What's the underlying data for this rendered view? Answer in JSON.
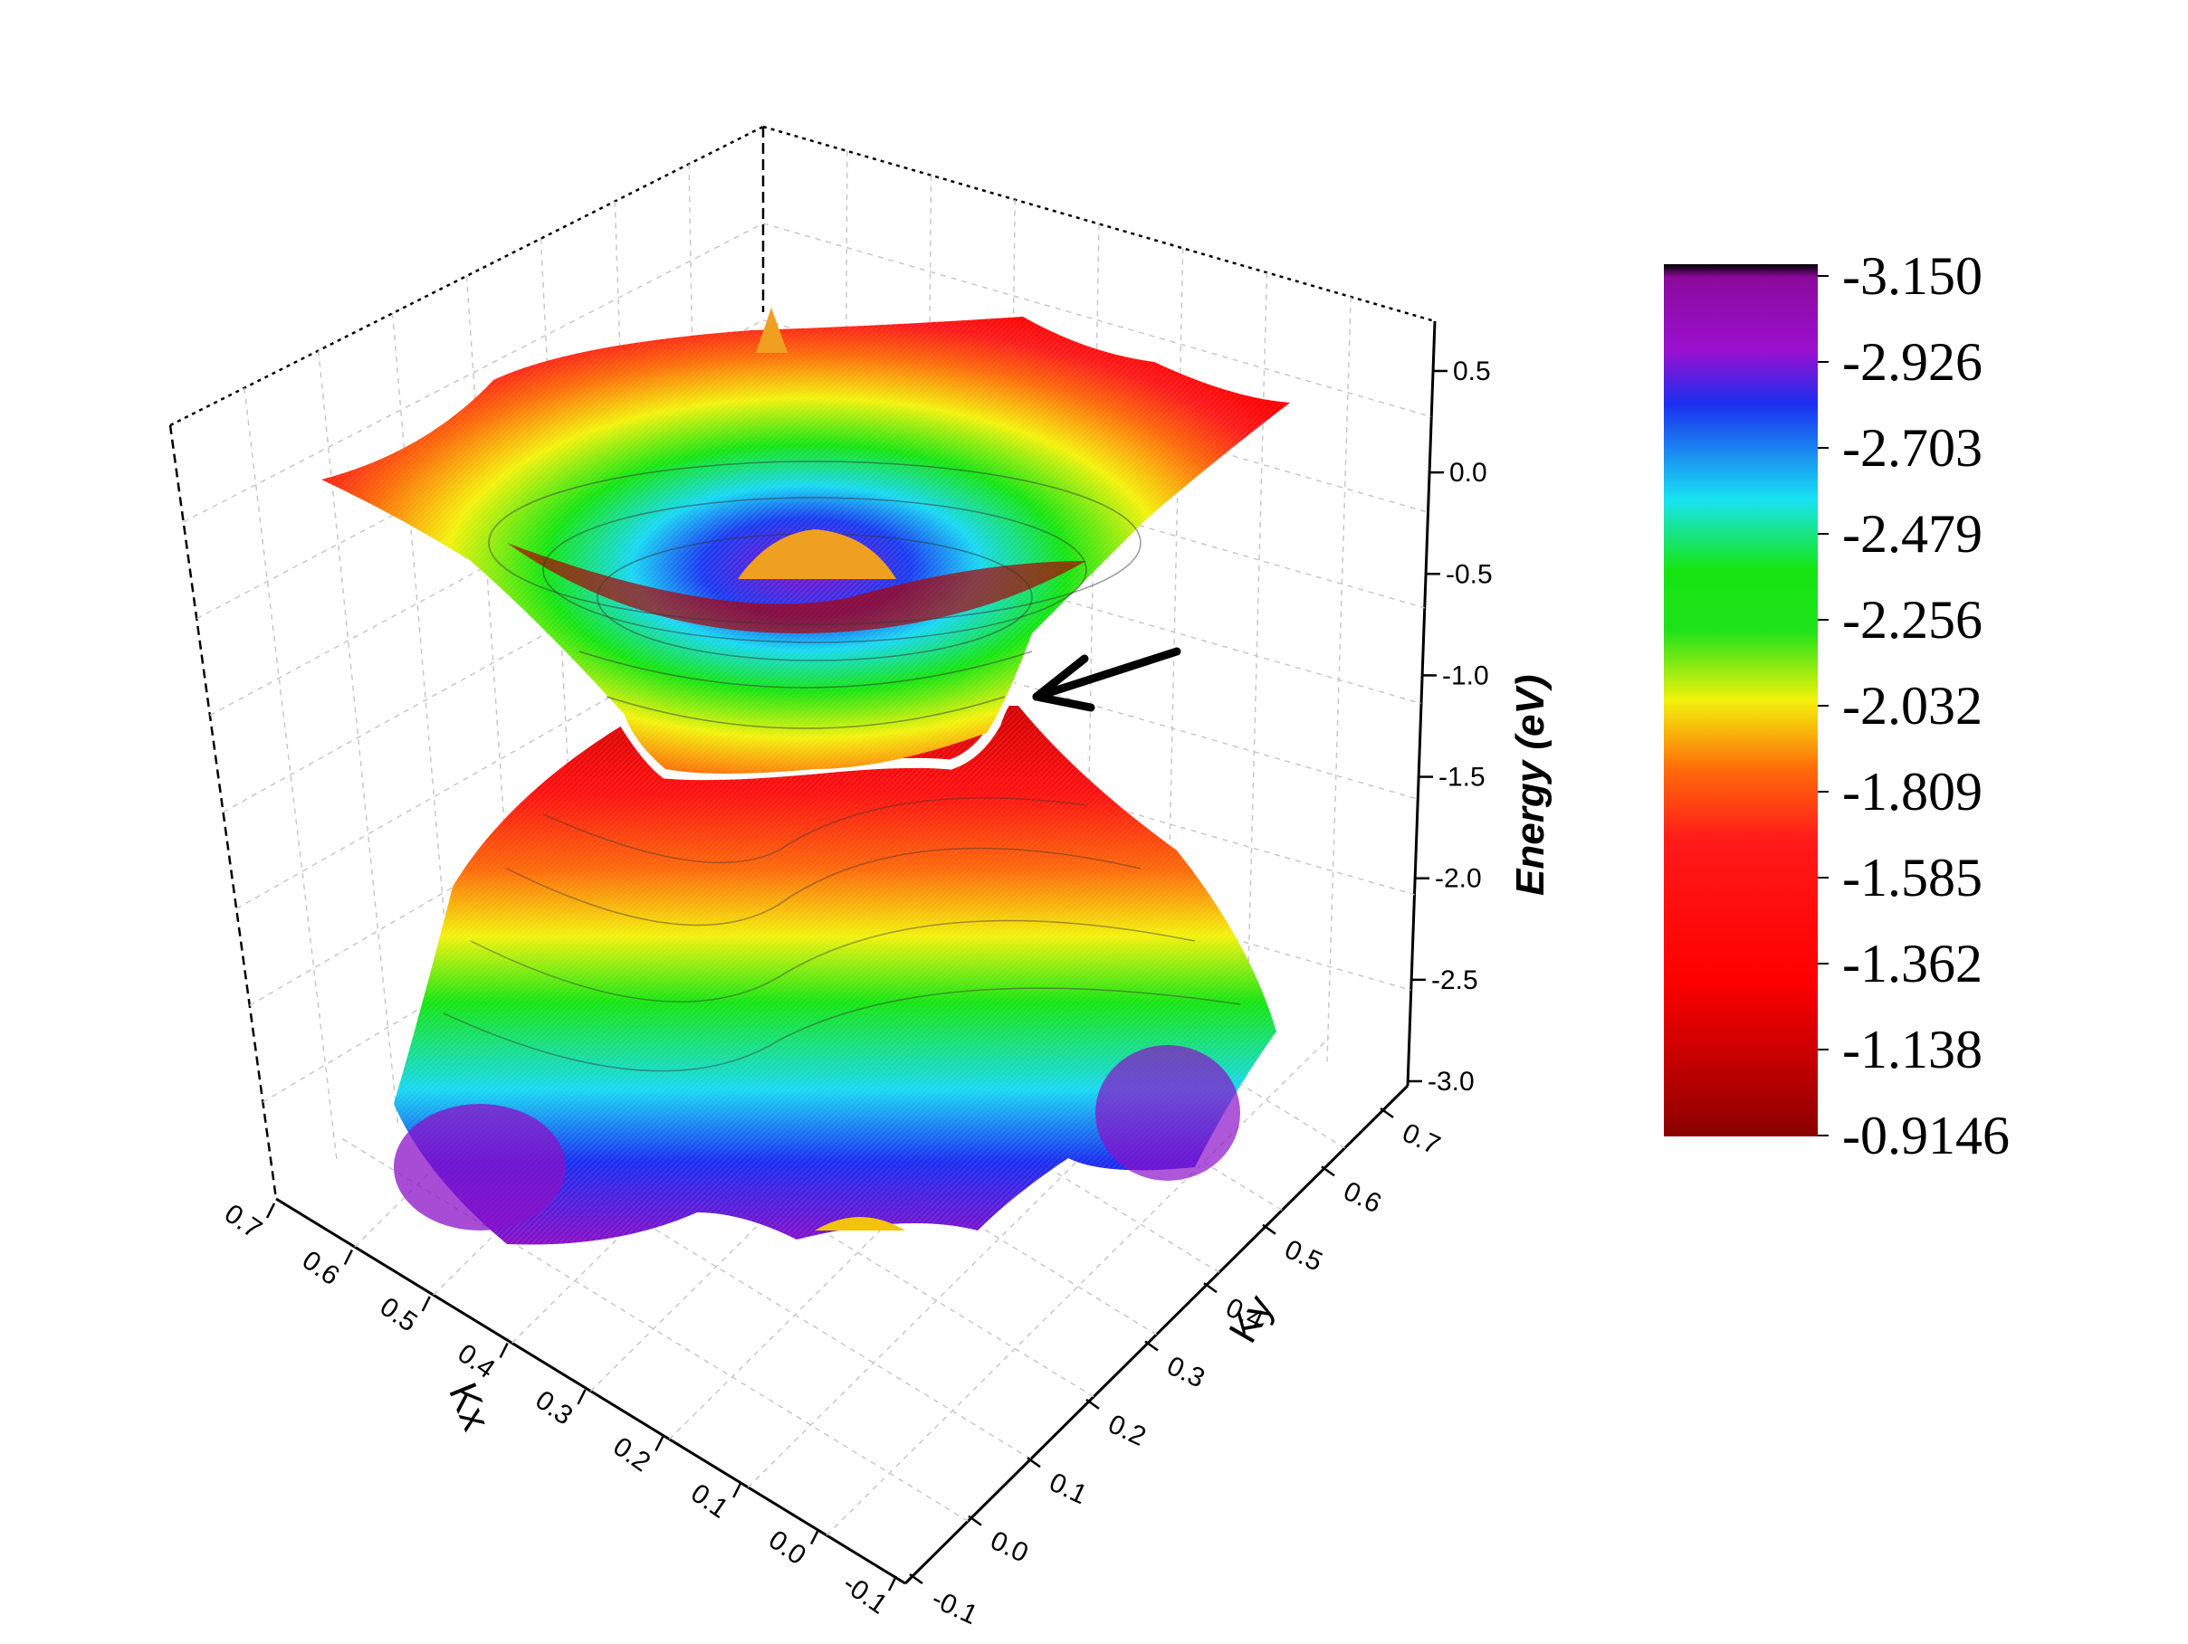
{
  "chart_data": {
    "type": "surface3d",
    "title": "",
    "xlabel": "Kx",
    "ylabel": "Ky",
    "zlabel": "Energy (eV)",
    "x_ticks": [
      "-0.1",
      "0.0",
      "0.1",
      "0.2",
      "0.3",
      "0.4",
      "0.5",
      "0.6",
      "0.7"
    ],
    "y_ticks": [
      "-0.1",
      "0.0",
      "0.1",
      "0.2",
      "0.3",
      "0.4",
      "0.5",
      "0.6",
      "0.7"
    ],
    "z_ticks": [
      "0.5",
      "0.0",
      "-0.5",
      "-1.0",
      "-1.5",
      "-2.0",
      "-2.5",
      "-3.0"
    ],
    "xlim": [
      -0.1,
      0.7
    ],
    "ylim": [
      -0.1,
      0.7
    ],
    "zlim": [
      -3.0,
      0.5
    ],
    "grid": true,
    "colorbar": {
      "labels": [
        "-3.150",
        "-2.926",
        "-2.703",
        "-2.479",
        "-2.256",
        "-2.032",
        "-1.809",
        "-1.585",
        "-1.362",
        "-1.138",
        "-0.9146"
      ],
      "min": -3.15,
      "max": -0.9146,
      "colors": [
        "#000000",
        "#8b0a9c",
        "#1b2ef0",
        "#19e3f2",
        "#16e512",
        "#f3f20c",
        "#ff6a0a",
        "#ff1a1a",
        "#ff0000",
        "#c00000",
        "#8b0000"
      ]
    },
    "surfaces": [
      {
        "name": "",
        "shape": "upper cone opening upward, minimum near -1.1 eV at the Dirac point"
      },
      {
        "name": "",
        "shape": "lower cone opening downward, maximum near -1.1 eV"
      }
    ],
    "annotations": [
      "arrow pointing to band touching point (white contour)"
    ]
  }
}
